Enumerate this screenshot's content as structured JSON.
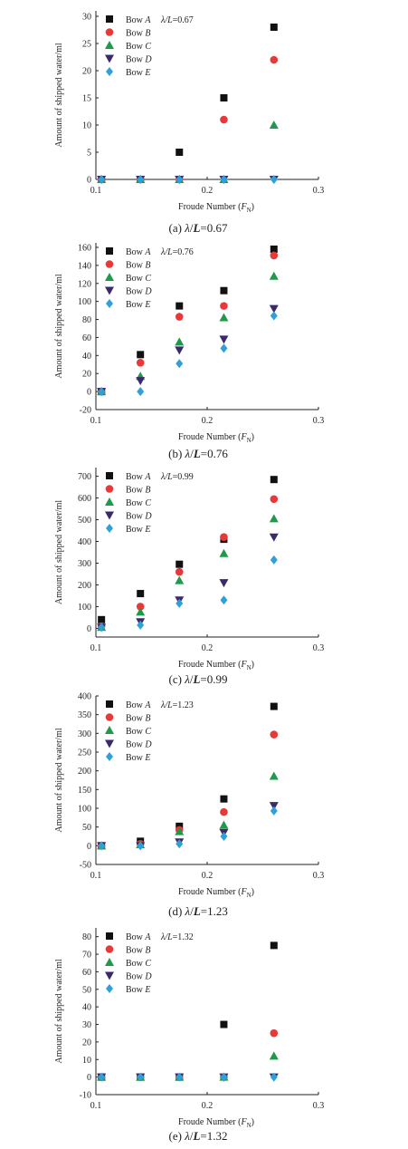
{
  "figure": {
    "symbols": {
      "Bow A": {
        "shape": "square",
        "color": "#111111"
      },
      "Bow B": {
        "shape": "circle",
        "color": "#e8393a"
      },
      "Bow C": {
        "shape": "triangle-up",
        "color": "#1f9a4a"
      },
      "Bow D": {
        "shape": "triangle-down",
        "color": "#3b2a6b"
      },
      "Bow E": {
        "shape": "diamond",
        "color": "#2ea1d8"
      }
    }
  },
  "chart_data": [
    {
      "type": "scatter",
      "caption": "(a) λ/L=0.67",
      "legend_note": "λ/L=0.67",
      "xlabel": "Froude Number (F_N)",
      "ylabel": "Amount of shipped water/ml",
      "xlim": [
        0.1,
        0.3
      ],
      "ylim": [
        0,
        31
      ],
      "xticks": [
        0.1,
        0.2,
        0.3
      ],
      "yticks": [
        0,
        5,
        10,
        15,
        20,
        25,
        30
      ],
      "legend_position": "top-left",
      "x": [
        0.105,
        0.14,
        0.175,
        0.215,
        0.26
      ],
      "series": [
        {
          "name": "Bow A",
          "values": [
            0,
            0,
            5,
            15,
            28
          ]
        },
        {
          "name": "Bow B",
          "values": [
            0,
            0,
            0,
            11,
            22
          ]
        },
        {
          "name": "Bow C",
          "values": [
            0,
            0,
            0,
            0,
            10
          ]
        },
        {
          "name": "Bow D",
          "values": [
            0,
            0,
            0,
            0,
            0
          ]
        },
        {
          "name": "Bow E",
          "values": [
            0,
            0,
            0,
            0,
            0
          ]
        }
      ]
    },
    {
      "type": "scatter",
      "caption": "(b) λ/L=0.76",
      "legend_note": "λ/L=0.76",
      "xlabel": "Froude Number (F_N)",
      "ylabel": "Amount of shipped water/ml",
      "xlim": [
        0.1,
        0.3
      ],
      "ylim": [
        -20,
        165
      ],
      "xticks": [
        0.1,
        0.2,
        0.3
      ],
      "yticks": [
        -20,
        0,
        20,
        40,
        60,
        80,
        100,
        120,
        140,
        160
      ],
      "legend_position": "top-left",
      "x": [
        0.105,
        0.14,
        0.175,
        0.215,
        0.26
      ],
      "series": [
        {
          "name": "Bow A",
          "values": [
            0,
            41,
            95,
            112,
            158
          ]
        },
        {
          "name": "Bow B",
          "values": [
            0,
            32,
            83,
            95,
            151
          ]
        },
        {
          "name": "Bow C",
          "values": [
            0,
            17,
            55,
            82,
            128
          ]
        },
        {
          "name": "Bow D",
          "values": [
            0,
            12,
            46,
            58,
            92
          ]
        },
        {
          "name": "Bow E",
          "values": [
            0,
            0,
            31,
            48,
            84
          ]
        }
      ]
    },
    {
      "type": "scatter",
      "caption": "(c) λ/L=0.99",
      "legend_note": "λ/L=0.99",
      "xlabel": "Froude Number (F_N)",
      "ylabel": "Amount of shipped water/ml",
      "xlim": [
        0.1,
        0.3
      ],
      "ylim": [
        -40,
        740
      ],
      "xticks": [
        0.1,
        0.2,
        0.3
      ],
      "yticks": [
        0,
        100,
        200,
        300,
        400,
        500,
        600,
        700
      ],
      "legend_position": "top-left",
      "x": [
        0.105,
        0.14,
        0.175,
        0.215,
        0.26
      ],
      "series": [
        {
          "name": "Bow A",
          "values": [
            40,
            160,
            295,
            410,
            685
          ]
        },
        {
          "name": "Bow B",
          "values": [
            10,
            100,
            260,
            420,
            595
          ]
        },
        {
          "name": "Bow C",
          "values": [
            5,
            75,
            220,
            345,
            505
          ]
        },
        {
          "name": "Bow D",
          "values": [
            5,
            30,
            130,
            210,
            420
          ]
        },
        {
          "name": "Bow E",
          "values": [
            5,
            15,
            115,
            130,
            315
          ]
        }
      ]
    },
    {
      "type": "scatter",
      "caption": "(d) λ/L=1.23",
      "legend_note": "λ/L=1.23",
      "xlabel": "Froude Number (F_N)",
      "ylabel": "Amount of shipped water/ml",
      "xlim": [
        0.1,
        0.3
      ],
      "ylim": [
        -50,
        400
      ],
      "xticks": [
        0.1,
        0.2,
        0.3
      ],
      "yticks": [
        -50,
        0,
        50,
        100,
        150,
        200,
        250,
        300,
        350,
        400
      ],
      "legend_position": "top-left",
      "x": [
        0.105,
        0.14,
        0.175,
        0.215,
        0.26
      ],
      "series": [
        {
          "name": "Bow A",
          "values": [
            0,
            12,
            52,
            125,
            372
          ]
        },
        {
          "name": "Bow B",
          "values": [
            0,
            5,
            42,
            90,
            297
          ]
        },
        {
          "name": "Bow C",
          "values": [
            0,
            3,
            38,
            55,
            186
          ]
        },
        {
          "name": "Bow D",
          "values": [
            0,
            0,
            10,
            35,
            107
          ]
        },
        {
          "name": "Bow E",
          "values": [
            0,
            0,
            5,
            25,
            93
          ]
        }
      ]
    },
    {
      "type": "scatter",
      "caption": "(e) λ/L=1.32",
      "legend_note": "λ/L=1.32",
      "xlabel": "Froude Number (F_N)",
      "ylabel": "Amount of shipped water/ml",
      "xlim": [
        0.1,
        0.3
      ],
      "ylim": [
        -10,
        85
      ],
      "xticks": [
        0.1,
        0.2,
        0.3
      ],
      "yticks": [
        -10,
        0,
        10,
        20,
        30,
        40,
        50,
        60,
        70,
        80
      ],
      "legend_position": "top-left",
      "x": [
        0.105,
        0.14,
        0.175,
        0.215,
        0.26
      ],
      "series": [
        {
          "name": "Bow A",
          "values": [
            0,
            0,
            0,
            30,
            75
          ]
        },
        {
          "name": "Bow B",
          "values": [
            0,
            0,
            0,
            0,
            25
          ]
        },
        {
          "name": "Bow C",
          "values": [
            0,
            0,
            0,
            0,
            12
          ]
        },
        {
          "name": "Bow D",
          "values": [
            0,
            0,
            0,
            0,
            0
          ]
        },
        {
          "name": "Bow E",
          "values": [
            0,
            0,
            0,
            0,
            0
          ]
        }
      ]
    }
  ]
}
